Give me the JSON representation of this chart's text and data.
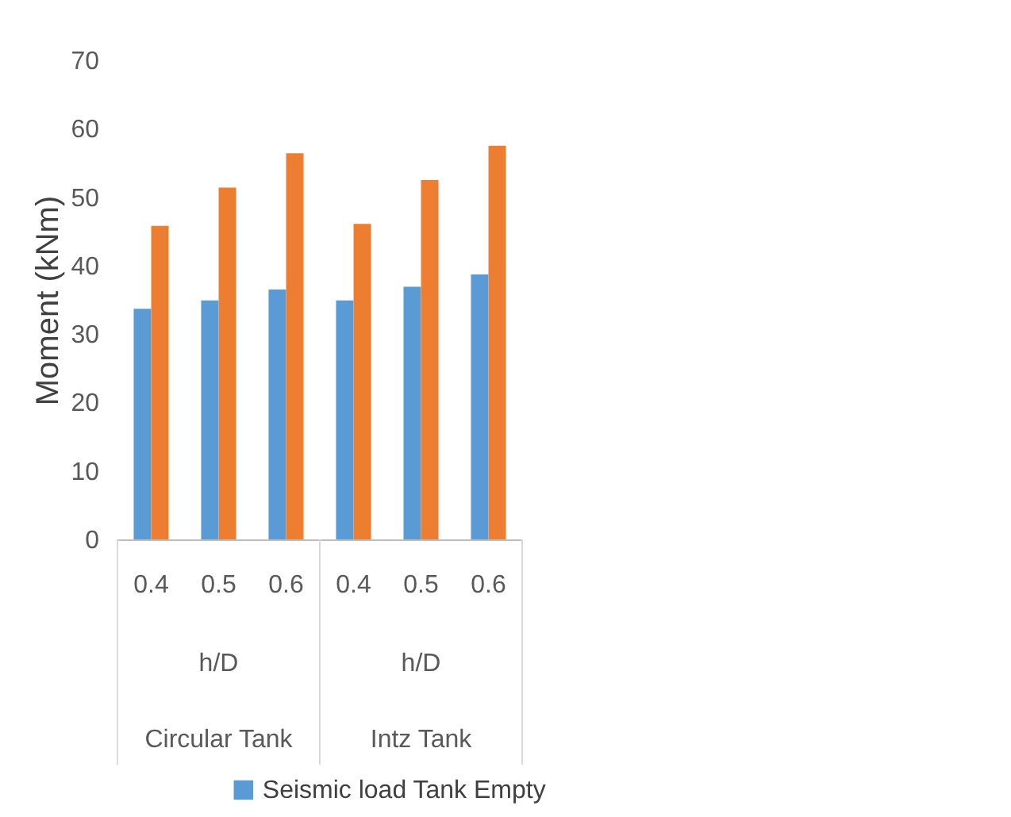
{
  "chart_data": {
    "type": "bar",
    "ylabel": "Moment (kNm)",
    "categories": [
      "0.4",
      "0.5",
      "0.6",
      "0.4",
      "0.5",
      "0.6"
    ],
    "series": [
      {
        "name": "Seismic load Tank Empty",
        "color": "#5b9bd5",
        "values": [
          33.7,
          34.9,
          36.5,
          34.9,
          36.9,
          38.7
        ]
      },
      {
        "color": "#ed7d31",
        "values": [
          45.8,
          51.4,
          56.4,
          46.1,
          52.5,
          57.5
        ]
      }
    ],
    "annotations": [
      "h/D",
      "h/D",
      "Circular Tank",
      "Intz Tank"
    ],
    "ylim": [
      0,
      70
    ],
    "yticks": [
      0,
      10,
      20,
      30,
      40,
      50,
      60,
      70
    ],
    "grid": false,
    "legend": "bottom"
  }
}
